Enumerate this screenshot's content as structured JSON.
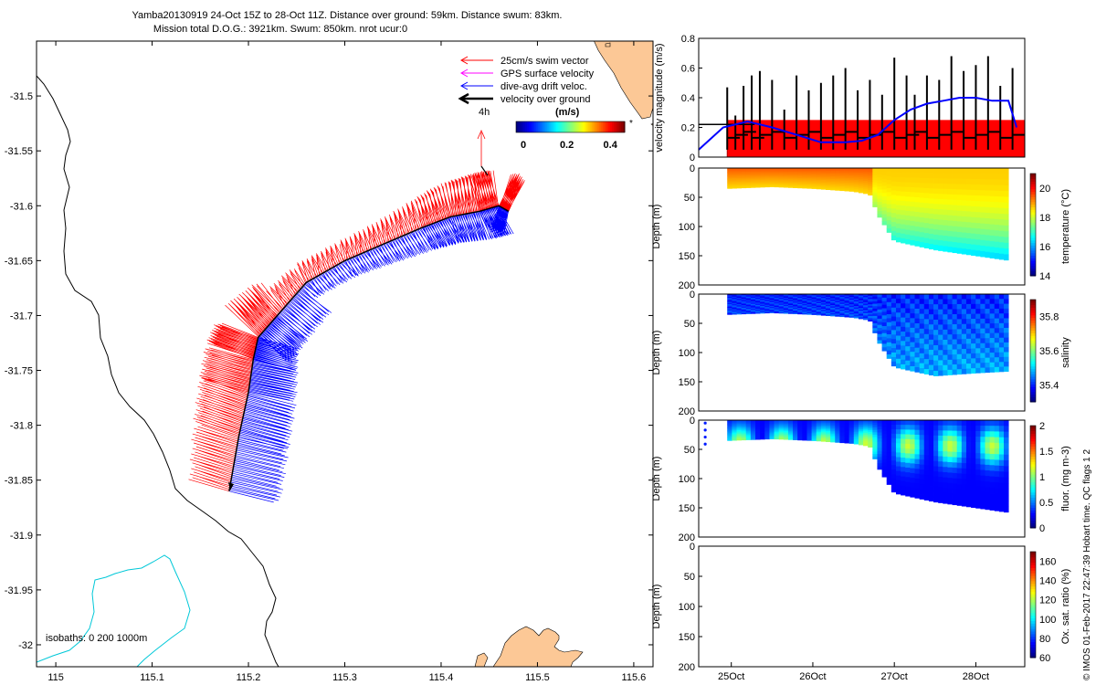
{
  "title": {
    "line1": "Yamba20130919 24-Oct 15Z to 28-Oct 11Z. Distance over ground: 59km. Distance swum: 83km.",
    "line2": "Mission total D.O.G.: 3921km. Swum: 850km. nrot ucur:0"
  },
  "colors": {
    "swim": "#ff0000",
    "gps": "#ff00ff",
    "drift": "#0000ff",
    "ground": "#000000",
    "coast": "#000000",
    "isobath200": "#00c8d8",
    "land": "#fcc896"
  },
  "chart_data": [
    {
      "id": "map",
      "type": "scatter",
      "title": "",
      "xlabel": "",
      "ylabel": "",
      "xlim": [
        114.98,
        115.62
      ],
      "ylim": [
        -32.02,
        -31.45
      ],
      "x_ticks": [
        115,
        115.1,
        115.2,
        115.3,
        115.4,
        115.5,
        115.6
      ],
      "x_tick_labels": [
        "115",
        "115.1",
        "115.2",
        "115.3",
        "115.4",
        "115.5",
        "115.6"
      ],
      "y_ticks": [
        -31.5,
        -31.55,
        -31.6,
        -31.65,
        -31.7,
        -31.75,
        -31.8,
        -31.85,
        -31.9,
        -31.95,
        -32
      ],
      "y_tick_labels": [
        "-31.5",
        "-31.55",
        "-31.6",
        "-31.65",
        "-31.7",
        "-31.75",
        "-31.8",
        "-31.85",
        "-31.9",
        "-31.95",
        "-32"
      ],
      "legend": [
        "25cm/s swim vector",
        "GPS surface velocity",
        "dive-avg drift veloc.",
        "velocity over ground"
      ],
      "legend_position": "top-right",
      "timestamp_label": "4h",
      "colorbar": {
        "label": "(m/s)",
        "ticks": [
          0,
          0.2,
          0.4
        ],
        "tick_labels": [
          "0",
          "0.2",
          "0.4"
        ],
        "range": [
          0,
          0.5
        ]
      },
      "isobath_label": "isobaths:  0   200  1000m",
      "track": {
        "lon": [
          115.18,
          115.19,
          115.2,
          115.205,
          115.21,
          115.23,
          115.26,
          115.3,
          115.34,
          115.38,
          115.41,
          115.44,
          115.46,
          115.47
        ],
        "lat": [
          -31.86,
          -31.81,
          -31.77,
          -31.74,
          -31.72,
          -31.7,
          -31.67,
          -31.65,
          -31.635,
          -31.62,
          -31.61,
          -31.605,
          -31.6,
          -31.605
        ]
      }
    },
    {
      "id": "velocity",
      "type": "bar",
      "ylabel": "velocity magnitude (m/s)",
      "ylim": [
        0,
        0.8
      ],
      "y_ticks": [
        0,
        0.2,
        0.4,
        0.6,
        0.8
      ],
      "y_tick_labels": [
        "0",
        "0.2",
        "0.4",
        "0.6",
        "0.8"
      ],
      "xlim": [
        24.6,
        28.6
      ],
      "swim_speed_level": 0.25,
      "swim_start_day": 24.95,
      "drift_series": {
        "name": "dive-avg drift veloc.",
        "x": [
          24.6,
          24.9,
          25.2,
          25.5,
          25.8,
          26.1,
          26.4,
          26.6,
          26.8,
          27.0,
          27.2,
          27.4,
          27.6,
          27.8,
          28.0,
          28.2,
          28.4,
          28.5
        ],
        "values": [
          0.05,
          0.2,
          0.24,
          0.2,
          0.15,
          0.1,
          0.1,
          0.11,
          0.15,
          0.25,
          0.32,
          0.36,
          0.38,
          0.4,
          0.4,
          0.38,
          0.38,
          0.2
        ]
      },
      "ground_spikes": {
        "x": [
          24.95,
          25.05,
          25.15,
          25.25,
          25.35,
          25.5,
          25.65,
          25.8,
          25.95,
          26.1,
          26.25,
          26.4,
          26.55,
          26.7,
          26.85,
          27.0,
          27.15,
          27.25,
          27.4,
          27.55,
          27.7,
          27.85,
          28.0,
          28.15,
          28.3,
          28.45
        ],
        "values": [
          0.47,
          0.28,
          0.48,
          0.55,
          0.58,
          0.52,
          0.32,
          0.55,
          0.45,
          0.5,
          0.55,
          0.6,
          0.45,
          0.52,
          0.42,
          0.67,
          0.55,
          0.42,
          0.55,
          0.52,
          0.68,
          0.58,
          0.62,
          0.68,
          0.48,
          0.6
        ]
      }
    },
    {
      "id": "temperature",
      "type": "heatmap",
      "ylabel": "Depth (m)",
      "colorbar_label": "temperature (°C)",
      "ylim": [
        200,
        0
      ],
      "y_ticks": [
        0,
        50,
        100,
        150,
        200
      ],
      "y_tick_labels": [
        "0",
        "50",
        "100",
        "150",
        "200"
      ],
      "clim": [
        14,
        21
      ],
      "colorbar_ticks": [
        14,
        16,
        18,
        20
      ],
      "colorbar_tick_labels": [
        "14",
        "16",
        "18",
        "20"
      ],
      "max_depth_profile": {
        "day": [
          24.95,
          25.5,
          26.0,
          26.5,
          26.7,
          26.8,
          27.0,
          27.5,
          28.0,
          28.4
        ],
        "depth": [
          35,
          32,
          35,
          40,
          45,
          80,
          125,
          140,
          150,
          158
        ]
      },
      "surface_value": 19.5,
      "deep_value": 18.6
    },
    {
      "id": "salinity",
      "type": "heatmap",
      "ylabel": "Depth (m)",
      "colorbar_label": "salinity",
      "ylim": [
        200,
        0
      ],
      "y_ticks": [
        0,
        50,
        100,
        150,
        200
      ],
      "y_tick_labels": [
        "0",
        "50",
        "100",
        "150",
        "200"
      ],
      "clim": [
        35.3,
        35.9
      ],
      "colorbar_ticks": [
        35.4,
        35.6,
        35.8
      ],
      "colorbar_tick_labels": [
        "35.4",
        "35.6",
        "35.8"
      ],
      "max_depth_profile": {
        "day": [
          24.95,
          25.5,
          26.0,
          26.5,
          26.7,
          26.8,
          27.0,
          27.5,
          28.0,
          28.4
        ],
        "depth": [
          35,
          32,
          35,
          40,
          45,
          80,
          125,
          140,
          135,
          132
        ]
      },
      "surface_value": 35.36,
      "deep_value": 35.45
    },
    {
      "id": "fluorescence",
      "type": "heatmap",
      "ylabel": "Depth (m)",
      "colorbar_label": "fluor. (mg m-3)",
      "ylim": [
        200,
        0
      ],
      "y_ticks": [
        0,
        50,
        100,
        150,
        200
      ],
      "y_tick_labels": [
        "0",
        "50",
        "100",
        "150",
        "200"
      ],
      "clim": [
        0,
        2
      ],
      "colorbar_ticks": [
        0,
        0.5,
        1,
        1.5,
        2
      ],
      "colorbar_tick_labels": [
        "0",
        "0.5",
        "1",
        "1.5",
        "2"
      ],
      "max_depth_profile": {
        "day": [
          24.95,
          25.5,
          26.0,
          26.5,
          26.7,
          26.8,
          27.0,
          27.5,
          28.0,
          28.4
        ],
        "depth": [
          35,
          32,
          35,
          40,
          45,
          80,
          125,
          140,
          150,
          158
        ]
      },
      "surface_value": 0.3,
      "deep_value": 0.4
    },
    {
      "id": "oxygen",
      "type": "heatmap",
      "ylabel": "Depth (m)",
      "colorbar_label": "Ox. sat. ratio (%)",
      "ylim": [
        200,
        0
      ],
      "y_ticks": [
        0,
        50,
        100,
        150,
        200
      ],
      "y_tick_labels": [
        "0",
        "50",
        "100",
        "150",
        "200"
      ],
      "clim": [
        60,
        170
      ],
      "colorbar_ticks": [
        60,
        80,
        100,
        120,
        140,
        160
      ],
      "colorbar_tick_labels": [
        "60",
        "80",
        "100",
        "120",
        "140",
        "160"
      ],
      "x_ticks": [
        25,
        26,
        27,
        28
      ],
      "x_tick_labels": [
        "25Oct",
        "26Oct",
        "27Oct",
        "28Oct"
      ]
    }
  ],
  "footer": "© IMOS 01-Feb-2017 22:47:39 Hobart time. QC flags 1  2"
}
